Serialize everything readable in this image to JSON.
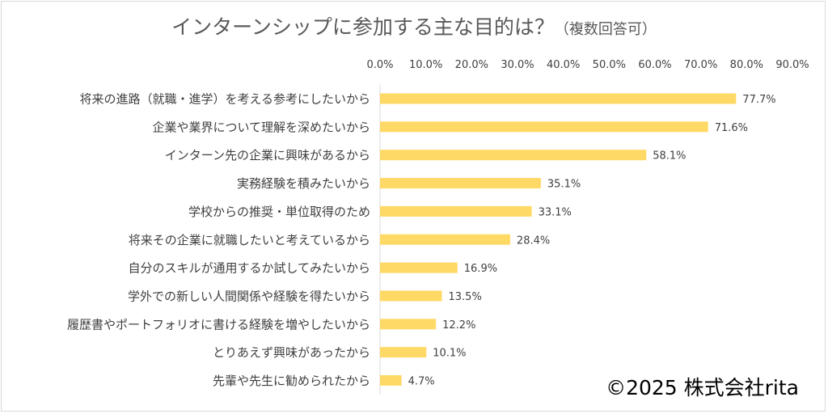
{
  "chart_data": {
    "type": "bar",
    "orientation": "horizontal",
    "title": "インターンシップに参加する主な目的は？",
    "subtitle": "（複数回答可）",
    "categories": [
      "将来の進路（就職・進学）を考える参考にしたいから",
      "企業や業界について理解を深めたいから",
      "インターン先の企業に興味があるから",
      "実務経験を積みたいから",
      "学校からの推奨・単位取得のため",
      "将来その企業に就職したいと考えているから",
      "自分のスキルが通用するか試してみたいから",
      "学外での新しい人間関係や経験を得たいから",
      "履歴書やポートフォリオに書ける経験を増やしたいから",
      "とりあえず興味があったから",
      "先輩や先生に勧められたから"
    ],
    "values": [
      77.7,
      71.6,
      58.1,
      35.1,
      33.1,
      28.4,
      16.9,
      13.5,
      12.2,
      10.1,
      4.7
    ],
    "data_labels": [
      "77.7%",
      "71.6%",
      "58.1%",
      "35.1%",
      "33.1%",
      "28.4%",
      "16.9%",
      "13.5%",
      "12.2%",
      "10.1%",
      "4.7%"
    ],
    "xlim": [
      0,
      90
    ],
    "x_ticks": [
      "0.0%",
      "10.0%",
      "20.0%",
      "30.0%",
      "40.0%",
      "50.0%",
      "60.0%",
      "70.0%",
      "80.0%",
      "90.0%"
    ],
    "x_tick_values": [
      0,
      10,
      20,
      30,
      40,
      50,
      60,
      70,
      80,
      90
    ],
    "xaxis_position": "top",
    "grid": false,
    "legend": "none",
    "colors": {
      "bar": "#FFD966",
      "text": "#404040",
      "title": "#595959",
      "frame": "#D9D9D9"
    }
  },
  "copyright": "©2025 株式会社rita"
}
